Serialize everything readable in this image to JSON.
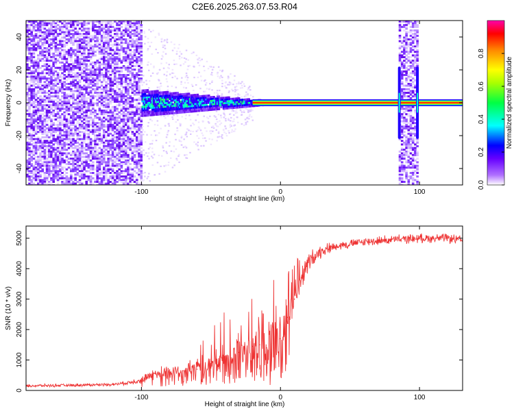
{
  "title": "C2E6.2025.263.07.53.R04",
  "chart_data": [
    {
      "type": "heatmap",
      "title": "C2E6.2025.263.07.53.R04",
      "xlabel": "Height of straight line (km)",
      "ylabel": "Frequency (Hz)",
      "xlim": [
        -183,
        131
      ],
      "ylim": [
        -50,
        50
      ],
      "xticks": [
        -100,
        0,
        100
      ],
      "yticks": [
        -40,
        -20,
        0,
        20,
        40
      ],
      "colorbar": {
        "label": "Normalized spectral amplitude",
        "range": [
          0,
          1
        ],
        "ticks": [
          0,
          0.2,
          0.4,
          0.6,
          0.8
        ],
        "tick_labels": [
          "0.0",
          "0.2",
          "0.4",
          "0.6",
          "0.8"
        ],
        "colors": [
          "#ffffff",
          "#6600ff",
          "#0000ff",
          "#00ffff",
          "#00ff00",
          "#ffff00",
          "#ff8800",
          "#ff0000",
          "#ff00aa"
        ]
      },
      "features": [
        {
          "name": "broadband noise",
          "x_range": [
            -183,
            -100
          ],
          "freq_range": [
            -50,
            50
          ]
        },
        {
          "name": "spreading carrier",
          "x_range": [
            -100,
            -20
          ],
          "freq_range": [
            -8,
            8
          ]
        },
        {
          "name": "carrier line",
          "x_range": [
            -20,
            131
          ],
          "freq_range": [
            -1,
            1
          ]
        },
        {
          "name": "noise band",
          "x_range": [
            85,
            99
          ],
          "freq_range": [
            -50,
            50
          ]
        }
      ]
    },
    {
      "type": "line",
      "xlabel": "Height of straight line (km)",
      "ylabel": "SNR (10 * v/v)",
      "xlim": [
        -183,
        131
      ],
      "ylim": [
        0,
        5400
      ],
      "xticks": [
        -100,
        0,
        100
      ],
      "yticks": [
        0,
        1000,
        2000,
        3000,
        4000,
        5000
      ],
      "series": [
        {
          "name": "SNR",
          "color": "#ee3333",
          "x": [
            -183,
            -150,
            -120,
            -110,
            -100,
            -90,
            -80,
            -70,
            -60,
            -50,
            -40,
            -30,
            -20,
            -15,
            -10,
            -5,
            0,
            5,
            10,
            15,
            20,
            25,
            30,
            40,
            60,
            80,
            100,
            120,
            131
          ],
          "y": [
            150,
            170,
            200,
            250,
            350,
            550,
            600,
            650,
            700,
            800,
            1050,
            1250,
            1450,
            1500,
            1400,
            1550,
            1700,
            2400,
            3000,
            3700,
            4200,
            4450,
            4600,
            4750,
            4880,
            4950,
            5000,
            5000,
            4930
          ],
          "amp": [
            60,
            60,
            60,
            80,
            150,
            250,
            300,
            350,
            450,
            600,
            800,
            1000,
            1200,
            1400,
            1500,
            1400,
            1300,
            900,
            700,
            500,
            400,
            300,
            250,
            180,
            180,
            180,
            180,
            180,
            180
          ]
        }
      ]
    }
  ]
}
